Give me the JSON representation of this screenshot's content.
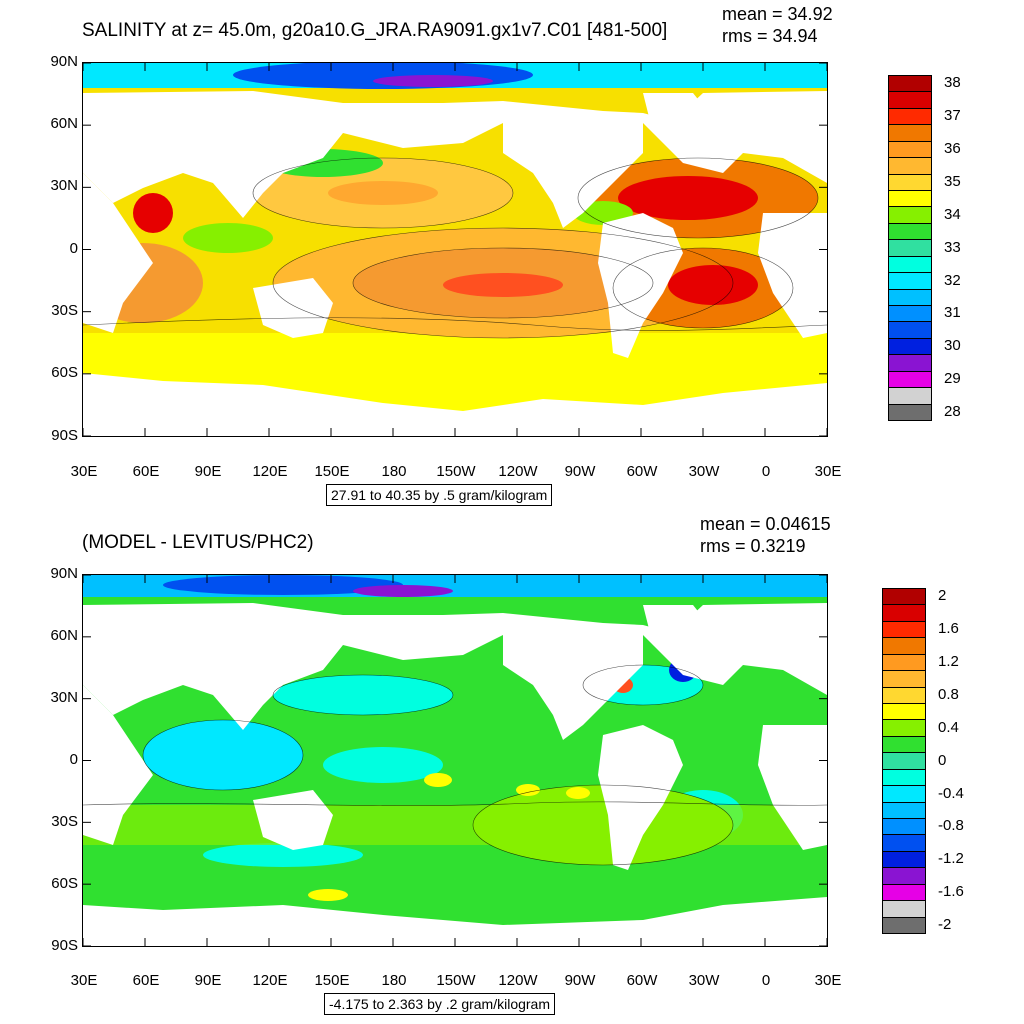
{
  "panels": [
    {
      "id": "top",
      "title": "SALINITY at z=  45.0m, g20a10.G_JRA.RA9091.gx1v7.C01 [481-500]",
      "stats": {
        "mean": "mean = 34.92",
        "rms": "rms = 34.94"
      },
      "lat_labels": [
        "90N",
        "60N",
        "30N",
        "0",
        "30S",
        "60S",
        "90S"
      ],
      "lon_labels": [
        "30E",
        "60E",
        "90E",
        "120E",
        "150E",
        "180",
        "150W",
        "120W",
        "90W",
        "60W",
        "30W",
        "0",
        "30E"
      ],
      "info": "27.91 to 40.35 by .5 gram/kilogram",
      "colorbar": {
        "labels": [
          "38",
          "37",
          "36",
          "35",
          "34",
          "33",
          "32",
          "31",
          "30",
          "29",
          "28"
        ],
        "colors": [
          "#b10000",
          "#d90000",
          "#ff2a00",
          "#f07800",
          "#ff9a20",
          "#ffb830",
          "#ffd830",
          "#ffff00",
          "#86f000",
          "#30e030",
          "#30e0a0",
          "#00ffe0",
          "#00e8ff",
          "#00c0ff",
          "#0090ff",
          "#0050f0",
          "#0020e0",
          "#8a14d2",
          "#e600e6",
          "#d2d2d2",
          "#6e6e6e"
        ]
      }
    },
    {
      "id": "bottom",
      "title": "(MODEL - LEVITUS/PHC2)",
      "stats": {
        "mean": "mean = 0.04615",
        "rms": "rms = 0.3219"
      },
      "lat_labels": [
        "90N",
        "60N",
        "30N",
        "0",
        "30S",
        "60S",
        "90S"
      ],
      "lon_labels": [
        "30E",
        "60E",
        "90E",
        "120E",
        "150E",
        "180",
        "150W",
        "120W",
        "90W",
        "60W",
        "30W",
        "0",
        "30E"
      ],
      "info": "-4.175 to 2.363 by .2 gram/kilogram",
      "colorbar": {
        "labels": [
          "2",
          "1.6",
          "1.2",
          "0.8",
          "0.4",
          "0",
          "-0.4",
          "-0.8",
          "-1.2",
          "-1.6",
          "-2"
        ],
        "colors": [
          "#b10000",
          "#d90000",
          "#ff2a00",
          "#f07800",
          "#ff9a20",
          "#ffb830",
          "#ffd830",
          "#ffff00",
          "#86f000",
          "#30e030",
          "#30e0a0",
          "#00ffe0",
          "#00e8ff",
          "#00c0ff",
          "#0090ff",
          "#0050f0",
          "#0020e0",
          "#8a14d2",
          "#e600e6",
          "#d2d2d2",
          "#6e6e6e"
        ]
      }
    }
  ]
}
